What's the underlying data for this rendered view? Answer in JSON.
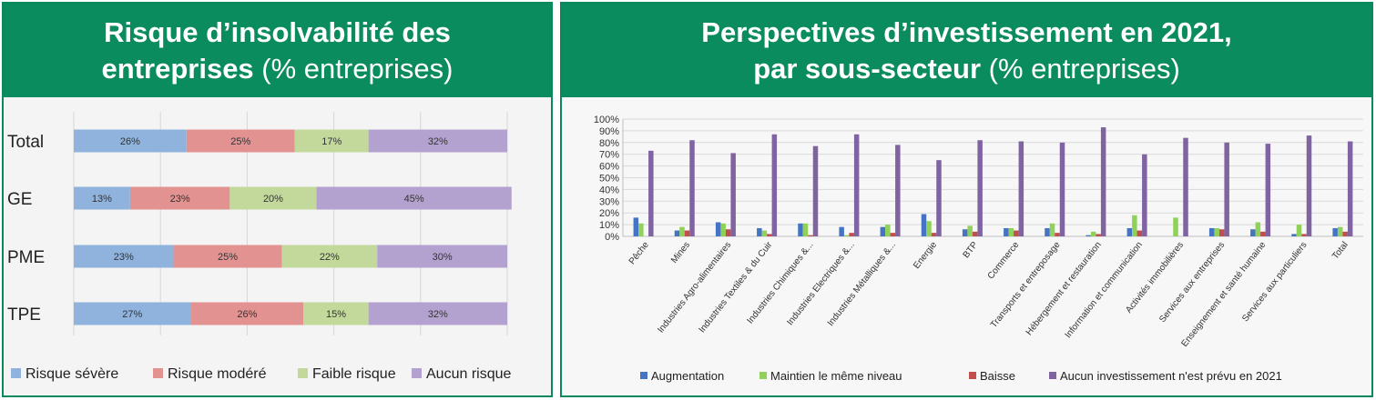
{
  "left": {
    "title_bold_1": "Risque d’insolvabilité des",
    "title_bold_2": "entreprises",
    "title_normal_2": " (% entreprises)",
    "chart_data": {
      "type": "bar",
      "orientation": "horizontal",
      "stacked": true,
      "categories": [
        "Total",
        "GE",
        "PME",
        "TPE"
      ],
      "series": [
        {
          "name": "Risque sévère",
          "color": "#8fb3dd",
          "values": [
            26,
            13,
            23,
            27
          ]
        },
        {
          "name": "Risque modéré",
          "color": "#e29391",
          "values": [
            25,
            23,
            25,
            26
          ]
        },
        {
          "name": "Faible risque",
          "color": "#c3d99b",
          "values": [
            17,
            20,
            22,
            15
          ]
        },
        {
          "name": "Aucun risque",
          "color": "#b3a2cf",
          "values": [
            32,
            45,
            30,
            32
          ]
        }
      ],
      "xlim": [
        0,
        100
      ],
      "grid": true,
      "legend": "bottom"
    }
  },
  "right": {
    "title_line1": "Perspectives d’investissement en 2021,",
    "title_bold_2": "par sous-secteur",
    "title_normal_2": " (% entreprises)",
    "chart_data": {
      "type": "bar",
      "stacked": false,
      "categories": [
        "Pêche",
        "Mines",
        "Industries Agro-alimentaires",
        "Industries Textiles & du Cuir",
        "Industries Chimiques &...",
        "Industries Electriques &...",
        "Industries Métalliques &...",
        "Energie",
        "BTP",
        "Commerce",
        "Transports et entreposage",
        "Hébergement et restauration",
        "Information et communication",
        "Activités immobilières",
        "Services aux entreprises",
        "Enseignement et santé humaine",
        "Services aux particuliers",
        "Total"
      ],
      "series": [
        {
          "name": "Augmentation",
          "color": "#4574c4",
          "values": [
            16,
            5,
            12,
            7,
            11,
            8,
            8,
            19,
            6,
            7,
            7,
            1,
            7,
            0,
            7,
            6,
            2,
            7
          ]
        },
        {
          "name": "Maintien le même niveau",
          "color": "#8fd15a",
          "values": [
            11,
            8,
            11,
            5,
            11,
            1,
            10,
            13,
            9,
            7,
            11,
            4,
            18,
            16,
            7,
            12,
            10,
            8
          ]
        },
        {
          "name": "Baisse",
          "color": "#c0504d",
          "values": [
            0,
            5,
            6,
            2,
            1,
            3,
            3,
            3,
            4,
            5,
            3,
            2,
            5,
            0,
            6,
            4,
            2,
            4
          ]
        },
        {
          "name": "Aucun investissement n'est prévu en 2021",
          "color": "#8064a2",
          "values": [
            73,
            82,
            71,
            87,
            77,
            87,
            78,
            65,
            82,
            81,
            80,
            93,
            70,
            84,
            80,
            79,
            86,
            81
          ]
        }
      ],
      "ylim": [
        0,
        100
      ],
      "yticks": [
        "0%",
        "10%",
        "20%",
        "30%",
        "40%",
        "50%",
        "60%",
        "70%",
        "80%",
        "90%",
        "100%"
      ],
      "grid": true,
      "legend": "bottom"
    }
  }
}
